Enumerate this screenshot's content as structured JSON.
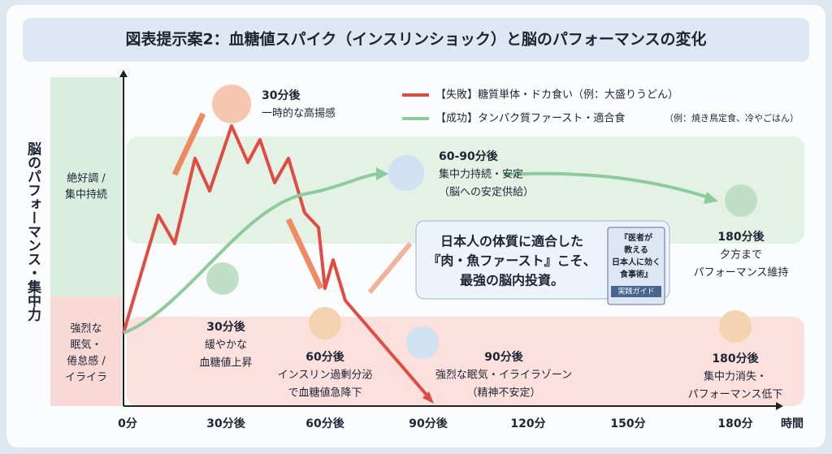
{
  "title": "図表提示案2：血糖値スパイク（インスリンショック）と脳のパフォーマンスの変化",
  "y_axis_label": "脳のパフォーマンス・集中力",
  "zones": {
    "good": [
      "絶好調 /",
      "集中持続"
    ],
    "bad": [
      "強烈な",
      "眠気・",
      "倦怠感 /",
      "イライラ"
    ]
  },
  "x_axis": {
    "ticks": [
      "0分",
      "30分後",
      "60分後",
      "90分後",
      "120分",
      "150分",
      "180分"
    ],
    "label": "時間"
  },
  "legend": [
    {
      "label": "【失敗】糖質単体・ドカ食い（例：大盛りうどん）"
    },
    {
      "label": "【成功】タンパク質ファースト・適合食",
      "note": "（例：焼き鳥定食、冷やごはん）"
    }
  ],
  "annotations": [
    {
      "lines": [
        "30分後",
        "一時的な高揚感"
      ]
    },
    {
      "lines": [
        "60-90分後",
        "集中力持続・安定",
        "（脳への安定供給）"
      ]
    },
    {
      "lines": [
        "180分後",
        "夕方まで",
        "パフォーマンス維持"
      ]
    },
    {
      "lines": [
        "30分後",
        "緩やかな",
        "血糖値上昇"
      ]
    },
    {
      "lines": [
        "60分後",
        "インスリン過剰分泌",
        "で血糖値急降下"
      ]
    },
    {
      "lines": [
        "90分後",
        "強烈な眠気・イライラゾーン",
        "（精神不安定）"
      ]
    },
    {
      "lines": [
        "180分後",
        "集中力消失・",
        "パフォーマンス低下"
      ]
    }
  ],
  "message": [
    "日本人の体質に適合した",
    "『肉・魚ファースト』こそ、",
    "最強の脳内投資。"
  ],
  "book": {
    "lines": [
      "『医者が",
      "教える",
      "日本人に効く",
      "食事術』"
    ],
    "badge": "実践ガイド"
  }
}
